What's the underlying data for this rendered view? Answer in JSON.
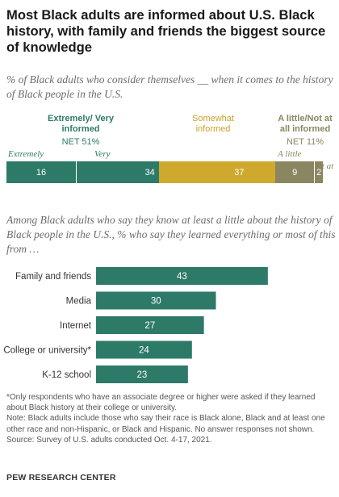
{
  "title": "Most Black adults are informed about U.S. Black history, with family and friends the biggest source of knowledge",
  "question1": "% of Black adults who consider themselves __ when it comes to the history of Black people in the U.S.",
  "question2": "Among Black adults who say they know at least a little about the history of Black people in the U.S., % who say they learned everything or most of this from …",
  "colors": {
    "green": "#2e7a68",
    "green_text": "#2e7a68",
    "gold": "#cfa92d",
    "gold_text": "#c9a228",
    "olive": "#8a8660",
    "olive_text": "#8a8660"
  },
  "chart_data": [
    {
      "type": "bar",
      "orientation": "horizontal-stacked",
      "groups": [
        {
          "label": "Extremely/ Very informed",
          "net": "NET 51%",
          "segments": [
            {
              "name": "Extremely",
              "value": 16
            },
            {
              "name": "Very",
              "value": 34
            }
          ]
        },
        {
          "label": "Somewhat informed",
          "net": "",
          "segments": [
            {
              "name": "",
              "value": 37
            }
          ]
        },
        {
          "label": "A little/Not at all informed",
          "net": "NET 11%",
          "segments": [
            {
              "name": "A little",
              "value": 9
            },
            {
              "name": "Not at all",
              "value": 2
            }
          ]
        }
      ]
    },
    {
      "type": "bar",
      "orientation": "horizontal",
      "categories": [
        "Family and friends",
        "Media",
        "Internet",
        "College or university*",
        "K-12 school"
      ],
      "values": [
        43,
        30,
        27,
        24,
        23
      ]
    }
  ],
  "notes": {
    "asterisk": "*Only respondents who have an associate degree or higher were asked if they learned about Black history at their college or university.",
    "note": "Note: Black adults include those who say their race is Black alone, Black and at least one other race and non-Hispanic, or Black and Hispanic. No answer responses not shown.",
    "source": "Source: Survey of U.S. adults conducted Oct. 4-17, 2021."
  },
  "footer": "PEW RESEARCH CENTER"
}
